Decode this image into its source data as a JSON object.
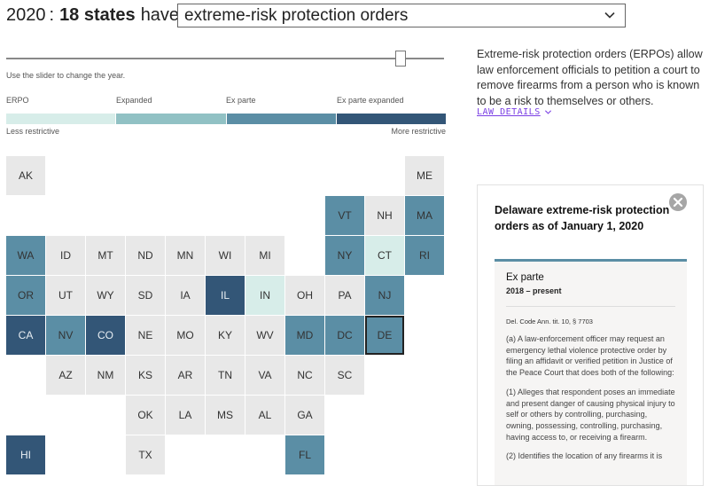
{
  "header": {
    "year": "2020",
    "colon": ":",
    "count_text": "18 states",
    "have_text": "have",
    "law_select": {
      "selected": "extreme-risk protection orders",
      "icon": "chevron-down-icon"
    }
  },
  "slider": {
    "hint": "Use the slider to change the year.",
    "value": "2020"
  },
  "legend": {
    "categories": [
      {
        "label": "ERPO",
        "color": "#d7ede9"
      },
      {
        "label": "Expanded",
        "color": "#91c1c4"
      },
      {
        "label": "Ex parte",
        "color": "#5b8ea5"
      },
      {
        "label": "Ex parte expanded",
        "color": "#335677"
      }
    ],
    "less": "Less restrictive",
    "more": "More restrictive",
    "none_color": "#e8e8e8"
  },
  "description": {
    "text": "Extreme-risk protection orders (ERPOs) allow law enforcement officials to petition a court to remove firearms from a person who is known to be a risk to themselves or others.",
    "link_label": "LAW DETAILS"
  },
  "map": {
    "states": [
      {
        "abbr": "AK",
        "row": 0,
        "col": 0,
        "cat": "none"
      },
      {
        "abbr": "ME",
        "row": 0,
        "col": 10,
        "cat": "none"
      },
      {
        "abbr": "VT",
        "row": 1,
        "col": 8,
        "cat": "exparte"
      },
      {
        "abbr": "NH",
        "row": 1,
        "col": 9,
        "cat": "none"
      },
      {
        "abbr": "MA",
        "row": 1,
        "col": 10,
        "cat": "exparte"
      },
      {
        "abbr": "WA",
        "row": 2,
        "col": 0,
        "cat": "exparte"
      },
      {
        "abbr": "ID",
        "row": 2,
        "col": 1,
        "cat": "none"
      },
      {
        "abbr": "MT",
        "row": 2,
        "col": 2,
        "cat": "none"
      },
      {
        "abbr": "ND",
        "row": 2,
        "col": 3,
        "cat": "none"
      },
      {
        "abbr": "MN",
        "row": 2,
        "col": 4,
        "cat": "none"
      },
      {
        "abbr": "WI",
        "row": 2,
        "col": 5,
        "cat": "none"
      },
      {
        "abbr": "MI",
        "row": 2,
        "col": 6,
        "cat": "none"
      },
      {
        "abbr": "NY",
        "row": 2,
        "col": 8,
        "cat": "exparte"
      },
      {
        "abbr": "CT",
        "row": 2,
        "col": 9,
        "cat": "erpo"
      },
      {
        "abbr": "RI",
        "row": 2,
        "col": 10,
        "cat": "exparte"
      },
      {
        "abbr": "OR",
        "row": 3,
        "col": 0,
        "cat": "exparte"
      },
      {
        "abbr": "UT",
        "row": 3,
        "col": 1,
        "cat": "none"
      },
      {
        "abbr": "WY",
        "row": 3,
        "col": 2,
        "cat": "none"
      },
      {
        "abbr": "SD",
        "row": 3,
        "col": 3,
        "cat": "none"
      },
      {
        "abbr": "IA",
        "row": 3,
        "col": 4,
        "cat": "none"
      },
      {
        "abbr": "IL",
        "row": 3,
        "col": 5,
        "cat": "exparte_expanded"
      },
      {
        "abbr": "IN",
        "row": 3,
        "col": 6,
        "cat": "erpo"
      },
      {
        "abbr": "OH",
        "row": 3,
        "col": 7,
        "cat": "none"
      },
      {
        "abbr": "PA",
        "row": 3,
        "col": 8,
        "cat": "none"
      },
      {
        "abbr": "NJ",
        "row": 3,
        "col": 9,
        "cat": "exparte"
      },
      {
        "abbr": "CA",
        "row": 4,
        "col": 0,
        "cat": "exparte_expanded"
      },
      {
        "abbr": "NV",
        "row": 4,
        "col": 1,
        "cat": "exparte"
      },
      {
        "abbr": "CO",
        "row": 4,
        "col": 2,
        "cat": "exparte_expanded"
      },
      {
        "abbr": "NE",
        "row": 4,
        "col": 3,
        "cat": "none"
      },
      {
        "abbr": "MO",
        "row": 4,
        "col": 4,
        "cat": "none"
      },
      {
        "abbr": "KY",
        "row": 4,
        "col": 5,
        "cat": "none"
      },
      {
        "abbr": "WV",
        "row": 4,
        "col": 6,
        "cat": "none"
      },
      {
        "abbr": "MD",
        "row": 4,
        "col": 7,
        "cat": "exparte"
      },
      {
        "abbr": "DC",
        "row": 4,
        "col": 8,
        "cat": "exparte"
      },
      {
        "abbr": "DE",
        "row": 4,
        "col": 9,
        "cat": "exparte",
        "selected": true
      },
      {
        "abbr": "AZ",
        "row": 5,
        "col": 1,
        "cat": "none"
      },
      {
        "abbr": "NM",
        "row": 5,
        "col": 2,
        "cat": "none"
      },
      {
        "abbr": "KS",
        "row": 5,
        "col": 3,
        "cat": "none"
      },
      {
        "abbr": "AR",
        "row": 5,
        "col": 4,
        "cat": "none"
      },
      {
        "abbr": "TN",
        "row": 5,
        "col": 5,
        "cat": "none"
      },
      {
        "abbr": "VA",
        "row": 5,
        "col": 6,
        "cat": "none"
      },
      {
        "abbr": "NC",
        "row": 5,
        "col": 7,
        "cat": "none"
      },
      {
        "abbr": "SC",
        "row": 5,
        "col": 8,
        "cat": "none"
      },
      {
        "abbr": "OK",
        "row": 6,
        "col": 3,
        "cat": "none"
      },
      {
        "abbr": "LA",
        "row": 6,
        "col": 4,
        "cat": "none"
      },
      {
        "abbr": "MS",
        "row": 6,
        "col": 5,
        "cat": "none"
      },
      {
        "abbr": "AL",
        "row": 6,
        "col": 6,
        "cat": "none"
      },
      {
        "abbr": "GA",
        "row": 6,
        "col": 7,
        "cat": "none"
      },
      {
        "abbr": "HI",
        "row": 7,
        "col": 0,
        "cat": "exparte_expanded"
      },
      {
        "abbr": "TX",
        "row": 7,
        "col": 3,
        "cat": "none"
      },
      {
        "abbr": "FL",
        "row": 7,
        "col": 7,
        "cat": "exparte"
      }
    ]
  },
  "panel": {
    "title": "Delaware extreme-risk protection orders as of January 1, 2020",
    "type": "Ex parte",
    "years": "2018 – present",
    "citation": "Del. Code Ann. tit. 10, § 7703",
    "paragraphs": [
      "(a) A law-enforcement officer may request an emergency lethal violence protective order by filing an affidavit or verified petition in Justice of the Peace Court that does both of the following:",
      "(1) Alleges that respondent poses an immediate and present danger of causing physical injury to self or others by controlling, purchasing, owning, possessing, controlling, purchasing, having access to, or receiving a firearm.",
      "(2) Identifies the location of any firearms it is"
    ],
    "accent": "#5b8ea5"
  }
}
